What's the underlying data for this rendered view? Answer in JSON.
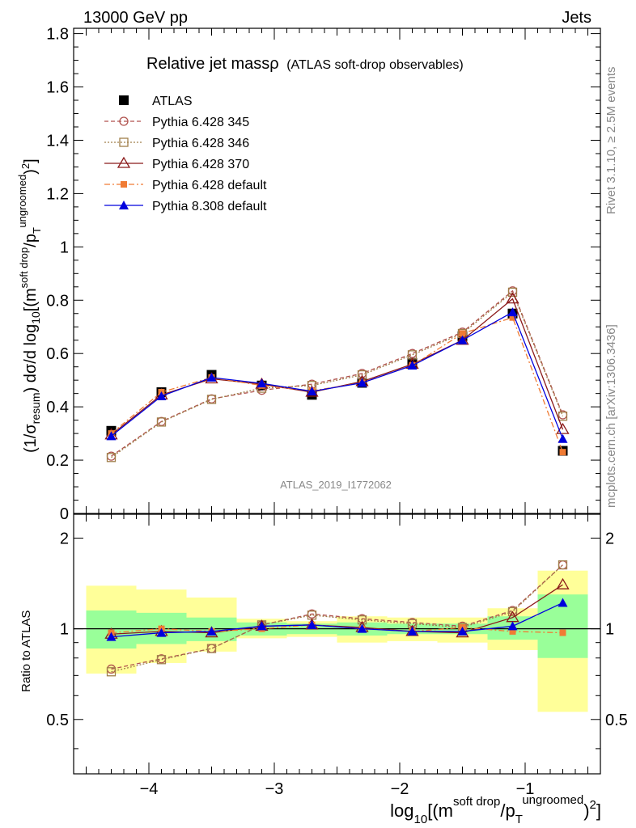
{
  "header": {
    "left": "13000 GeV pp",
    "right": "Jets",
    "title_main": "Relative jet massρ",
    "title_sub": "(ATLAS soft-drop observables)",
    "analysis_id": "ATLAS_2019_I1772062",
    "side_top": "Rivet 3.1.10, ≥ 2.5M events",
    "side_bottom": "mcplots.cern.ch [arXiv:1306.3436]"
  },
  "axes": {
    "ylabel_main": "(1/σresum) dσ/d log10[(m^soft drop/pT^ungroomed)2]",
    "ylabel_ratio": "Ratio to ATLAS",
    "xlabel": "log10[(m^soft drop/pT^ungroomed)2]"
  },
  "colors": {
    "atlas": "#000000",
    "p345": "#b0524e",
    "p346": "#a07f4a",
    "p370": "#8b1a1a",
    "p6def": "#f07b34",
    "p8def": "#0000dd",
    "band_inner": "#99ff99",
    "band_outer": "#ffff99"
  },
  "chart_data": {
    "type": "line",
    "x": [
      -4.3,
      -3.9,
      -3.5,
      -3.1,
      -2.7,
      -2.3,
      -1.9,
      -1.5,
      -1.1,
      -0.7
    ],
    "x_edges": [
      -4.5,
      -4.1,
      -3.7,
      -3.3,
      -2.9,
      -2.5,
      -2.1,
      -1.7,
      -1.3,
      -0.9,
      -0.5
    ],
    "xlim": [
      -4.6,
      -0.4
    ],
    "xticks": [
      -4,
      -3,
      -2,
      -1
    ],
    "xtick_labels": [
      "−4",
      "−3",
      "−2",
      "−1"
    ],
    "ylim": [
      0,
      1.82
    ],
    "yticks": [
      0,
      0.2,
      0.4,
      0.6,
      0.8,
      1,
      1.2,
      1.4,
      1.6,
      1.8
    ],
    "ytick_labels": [
      "0",
      "0.2",
      "0.4",
      "0.6",
      "0.8",
      "1",
      "1.2",
      "1.4",
      "1.6",
      "1.8"
    ],
    "ratio_ylim": [
      0.33,
      2.4
    ],
    "ratio_yticks": [
      0.5,
      1,
      2
    ],
    "ratio_ytick_labels": [
      "0.5",
      "1",
      "2"
    ],
    "series": [
      {
        "name": "ATLAS",
        "key": "atlas",
        "values": [
          0.31,
          0.455,
          0.52,
          0.48,
          0.445,
          0.49,
          0.565,
          0.665,
          0.75,
          0.235
        ]
      },
      {
        "name": "Pythia 6.428 345",
        "key": "p345",
        "values": [
          0.215,
          0.345,
          0.43,
          0.462,
          0.485,
          0.525,
          0.6,
          0.68,
          0.835,
          0.37
        ]
      },
      {
        "name": "Pythia 6.428 346",
        "key": "p346",
        "values": [
          0.21,
          0.343,
          0.428,
          0.47,
          0.48,
          0.52,
          0.595,
          0.675,
          0.83,
          0.365
        ]
      },
      {
        "name": "Pythia 6.428 370",
        "key": "p370",
        "values": [
          0.295,
          0.445,
          0.505,
          0.485,
          0.455,
          0.495,
          0.56,
          0.65,
          0.805,
          0.315
        ]
      },
      {
        "name": "Pythia 6.428 default",
        "key": "p6def",
        "values": [
          0.3,
          0.455,
          0.51,
          0.48,
          0.46,
          0.49,
          0.555,
          0.675,
          0.735,
          0.23
        ]
      },
      {
        "name": "Pythia 8.308 default",
        "key": "p8def",
        "values": [
          0.29,
          0.44,
          0.51,
          0.488,
          0.458,
          0.49,
          0.555,
          0.65,
          0.755,
          0.28
        ]
      }
    ],
    "ratio_series": [
      {
        "key": "p345",
        "values": [
          0.735,
          0.795,
          0.86,
          1.03,
          1.12,
          1.08,
          1.05,
          1.02,
          1.15,
          1.63
        ]
      },
      {
        "key": "p346",
        "values": [
          0.72,
          0.79,
          0.86,
          1.03,
          1.11,
          1.07,
          1.04,
          1.01,
          1.14,
          1.63
        ]
      },
      {
        "key": "p370",
        "values": [
          0.96,
          0.98,
          0.97,
          1.02,
          1.03,
          1.01,
          0.98,
          0.97,
          1.09,
          1.4
        ]
      },
      {
        "key": "p6def",
        "values": [
          0.97,
          1.0,
          0.98,
          1.0,
          1.03,
          1.0,
          0.98,
          1.01,
          0.98,
          0.97
        ]
      },
      {
        "key": "p8def",
        "values": [
          0.94,
          0.97,
          0.98,
          1.02,
          1.03,
          1.0,
          0.98,
          0.98,
          1.02,
          1.22
        ]
      }
    ],
    "band_inner": [
      [
        0.86,
        1.15
      ],
      [
        0.89,
        1.13
      ],
      [
        0.91,
        1.09
      ],
      [
        0.95,
        1.05
      ],
      [
        0.96,
        1.04
      ],
      [
        0.95,
        1.05
      ],
      [
        0.96,
        1.04
      ],
      [
        0.96,
        1.04
      ],
      [
        0.92,
        1.1
      ],
      [
        0.8,
        1.3
      ]
    ],
    "band_outer": [
      [
        0.71,
        1.39
      ],
      [
        0.77,
        1.35
      ],
      [
        0.84,
        1.27
      ],
      [
        0.93,
        1.08
      ],
      [
        0.94,
        1.06
      ],
      [
        0.9,
        1.1
      ],
      [
        0.91,
        1.09
      ],
      [
        0.9,
        1.09
      ],
      [
        0.85,
        1.17
      ],
      [
        0.53,
        1.56
      ]
    ]
  }
}
